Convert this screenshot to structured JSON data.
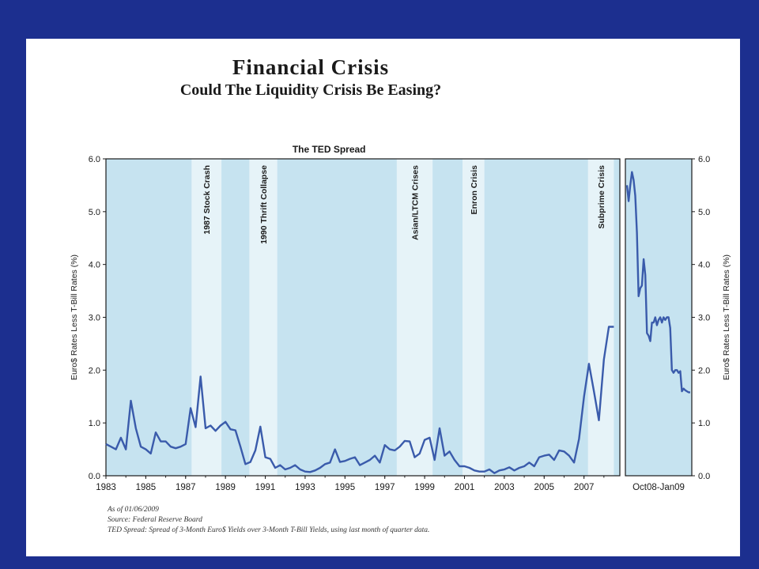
{
  "slide": {
    "title": "Financial Crisis",
    "subtitle": "Could The Liquidity Crisis Be Easing?"
  },
  "chart_data": {
    "type": "line",
    "title": "The TED Spread",
    "ylabel": "Euro$ Rates Less T-Bill Rates (%)",
    "ylim": [
      0,
      6
    ],
    "yticks": [
      "0.0",
      "1.0",
      "2.0",
      "3.0",
      "4.0",
      "5.0",
      "6.0"
    ],
    "x_ticks": [
      "1983",
      "1985",
      "1987",
      "1989",
      "1991",
      "1993",
      "1995",
      "1997",
      "1999",
      "2001",
      "2003",
      "2005",
      "2007"
    ],
    "inset_xlabel": "Oct08-Jan09",
    "annotations": [
      {
        "label": "1987 Stock Crash",
        "start": 1987.3,
        "end": 1988.8
      },
      {
        "label": "1990 Thrift Collapse",
        "start": 1990.2,
        "end": 1991.6
      },
      {
        "label": "Asian/LTCM Crises",
        "start": 1997.6,
        "end": 1999.4
      },
      {
        "label": "Enron Crisis",
        "start": 2000.9,
        "end": 2002.0
      },
      {
        "label": "Subprime Crisis",
        "start": 2007.2,
        "end": 2008.5
      }
    ],
    "series": [
      {
        "x": [
          1983.0,
          1983.25,
          1983.5,
          1983.75,
          1984.0,
          1984.25,
          1984.5,
          1984.75,
          1985.0,
          1985.25,
          1985.5,
          1985.75,
          1986.0,
          1986.25,
          1986.5,
          1986.75,
          1987.0,
          1987.25,
          1987.5,
          1987.75,
          1988.0,
          1988.25,
          1988.5,
          1988.75,
          1989.0,
          1989.25,
          1989.5,
          1989.75,
          1990.0,
          1990.25,
          1990.5,
          1990.75,
          1991.0,
          1991.25,
          1991.5,
          1991.75,
          1992.0,
          1992.25,
          1992.5,
          1992.75,
          1993.0,
          1993.25,
          1993.5,
          1993.75,
          1994.0,
          1994.25,
          1994.5,
          1994.75,
          1995.0,
          1995.25,
          1995.5,
          1995.75,
          1996.0,
          1996.25,
          1996.5,
          1996.75,
          1997.0,
          1997.25,
          1997.5,
          1997.75,
          1998.0,
          1998.25,
          1998.5,
          1998.75,
          1999.0,
          1999.25,
          1999.5,
          1999.75,
          2000.0,
          2000.25,
          2000.5,
          2000.75,
          2001.0,
          2001.25,
          2001.5,
          2001.75,
          2002.0,
          2002.25,
          2002.5,
          2002.75,
          2003.0,
          2003.25,
          2003.5,
          2003.75,
          2004.0,
          2004.25,
          2004.5,
          2004.75,
          2005.0,
          2005.25,
          2005.5,
          2005.75,
          2006.0,
          2006.25,
          2006.5,
          2006.75,
          2007.0,
          2007.25,
          2007.5,
          2007.75,
          2008.0,
          2008.25,
          2008.5
        ],
        "values": [
          0.6,
          0.55,
          0.5,
          0.72,
          0.5,
          1.42,
          0.9,
          0.55,
          0.5,
          0.42,
          0.82,
          0.65,
          0.65,
          0.55,
          0.52,
          0.55,
          0.6,
          1.28,
          0.92,
          1.88,
          0.9,
          0.95,
          0.85,
          0.95,
          1.02,
          0.88,
          0.86,
          0.55,
          0.22,
          0.26,
          0.48,
          0.93,
          0.35,
          0.32,
          0.15,
          0.2,
          0.12,
          0.15,
          0.2,
          0.12,
          0.08,
          0.07,
          0.1,
          0.15,
          0.22,
          0.25,
          0.5,
          0.26,
          0.28,
          0.32,
          0.35,
          0.2,
          0.25,
          0.3,
          0.38,
          0.25,
          0.58,
          0.5,
          0.48,
          0.55,
          0.66,
          0.65,
          0.35,
          0.42,
          0.68,
          0.72,
          0.3,
          0.9,
          0.38,
          0.46,
          0.3,
          0.18,
          0.18,
          0.15,
          0.1,
          0.08,
          0.08,
          0.12,
          0.05,
          0.1,
          0.12,
          0.16,
          0.1,
          0.15,
          0.18,
          0.25,
          0.18,
          0.35,
          0.38,
          0.4,
          0.3,
          0.48,
          0.46,
          0.38,
          0.25,
          0.7,
          1.5,
          2.12,
          1.6,
          1.05,
          2.2,
          2.82,
          2.82
        ]
      }
    ],
    "inset": {
      "x": [
        "Oct08",
        "",
        "",
        "",
        "",
        "",
        "",
        "",
        "",
        "",
        "",
        "",
        "",
        "",
        "",
        "",
        "",
        "",
        "",
        "",
        "",
        "",
        "",
        "",
        "",
        "",
        "",
        "",
        "",
        "",
        "",
        "",
        "",
        "",
        "",
        "",
        "",
        "",
        "Jan09"
      ],
      "values": [
        5.5,
        5.2,
        5.5,
        5.75,
        5.6,
        5.3,
        4.6,
        3.4,
        3.55,
        3.6,
        4.1,
        3.8,
        2.7,
        2.65,
        2.55,
        2.9,
        2.9,
        3.0,
        2.85,
        2.95,
        3.0,
        2.9,
        3.0,
        2.95,
        3.0,
        3.0,
        2.8,
        2.0,
        1.95,
        2.0,
        2.0,
        1.95,
        1.98,
        1.6,
        1.65,
        1.62,
        1.6,
        1.58,
        1.58
      ]
    },
    "grid": false,
    "notes": [
      "As of 01/06/2009",
      "Source: Federal Reserve Board",
      "TED Spread: Spread of 3-Month Euro$ Yields over 3-Month T-Bill Yields, using last month of quarter data."
    ]
  }
}
